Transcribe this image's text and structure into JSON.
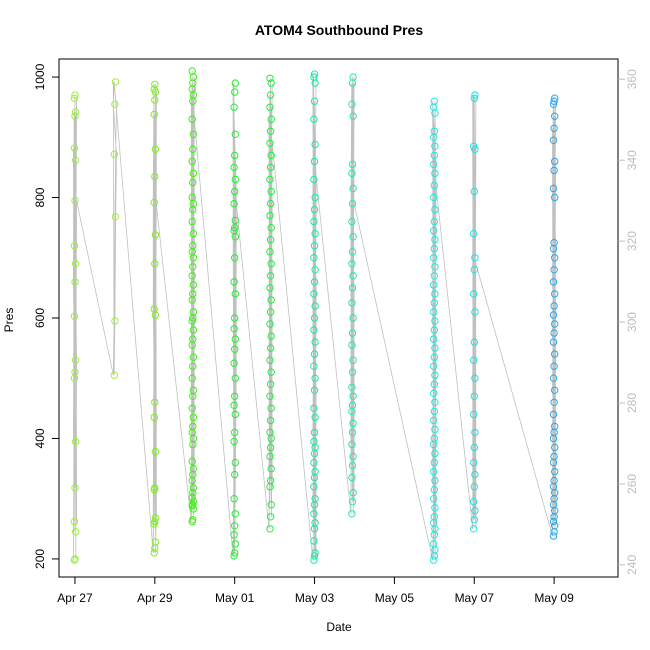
{
  "chart_data": {
    "type": "scatter",
    "title": "ATOM4 Southbound Pres",
    "xlabel": "Date",
    "ylabel": "Pres",
    "x_domain_days": [
      -0.4,
      13.6
    ],
    "x_ticks": [
      {
        "day": 0,
        "label": "Apr 27"
      },
      {
        "day": 2,
        "label": "Apr 29"
      },
      {
        "day": 4,
        "label": "May 01"
      },
      {
        "day": 6,
        "label": "May 03"
      },
      {
        "day": 8,
        "label": "May 05"
      },
      {
        "day": 10,
        "label": "May 07"
      },
      {
        "day": 12,
        "label": "May 09"
      }
    ],
    "ylim": [
      170,
      1030
    ],
    "y_ticks": [
      200,
      400,
      600,
      800,
      1000
    ],
    "y2lim": [
      237,
      365
    ],
    "y2_ticks": [
      240,
      260,
      280,
      300,
      320,
      340,
      360
    ],
    "grid": false,
    "casts": [
      {
        "day": 0.0,
        "color": "#9af13b",
        "values": [
          198,
          200,
          245,
          262,
          318,
          395,
          500,
          510,
          530,
          603,
          660,
          690,
          720,
          795,
          862,
          882,
          935,
          942,
          965,
          970
        ]
      },
      {
        "day": 1.0,
        "color": "#a2ef3c",
        "values": [
          505,
          595,
          768,
          872,
          955,
          992
        ]
      },
      {
        "day": 2.0,
        "color": "#80ef20",
        "values": [
          210,
          218,
          228,
          258,
          262,
          268,
          315,
          318,
          378,
          435,
          460,
          605,
          615,
          690,
          738,
          792,
          835,
          880,
          938,
          962,
          975,
          980,
          988
        ]
      },
      {
        "day": 2.95,
        "color": "#3ff014",
        "values": [
          262,
          265,
          283,
          288,
          290,
          295,
          302,
          310,
          318,
          330,
          340,
          350,
          362,
          390,
          400,
          410,
          420,
          435,
          450,
          470,
          480,
          500,
          520,
          535,
          555,
          565,
          580,
          595,
          600,
          610,
          630,
          640,
          655,
          670,
          685,
          700,
          710,
          720,
          740,
          760,
          780,
          790,
          800,
          825,
          840,
          860,
          880,
          905,
          930,
          960,
          970,
          980,
          990,
          1000,
          1010
        ]
      },
      {
        "day": 4.0,
        "color": "#22f030",
        "values": [
          205,
          210,
          225,
          240,
          255,
          275,
          300,
          340,
          360,
          395,
          410,
          440,
          455,
          470,
          500,
          525,
          548,
          565,
          582,
          600,
          640,
          660,
          700,
          735,
          745,
          750,
          762,
          790,
          810,
          830,
          850,
          870,
          905,
          950,
          975,
          990
        ]
      },
      {
        "day": 4.9,
        "color": "#20ee40",
        "values": [
          250,
          270,
          290,
          320,
          330,
          350,
          370,
          385,
          400,
          410,
          430,
          450,
          470,
          490,
          510,
          530,
          550,
          570,
          590,
          610,
          630,
          650,
          670,
          690,
          710,
          730,
          750,
          770,
          790,
          810,
          830,
          850,
          870,
          890,
          910,
          930,
          950,
          970,
          990,
          998
        ]
      },
      {
        "day": 6.0,
        "color": "#20e8a0",
        "values": [
          198,
          205,
          210,
          230,
          250,
          260,
          275,
          290,
          300,
          320,
          335,
          345,
          360,
          375,
          385,
          395,
          410,
          435,
          450,
          480,
          500,
          520,
          540,
          560,
          580,
          600,
          620,
          640,
          660,
          680,
          700,
          720,
          740,
          760,
          780,
          800,
          830,
          860,
          888,
          930,
          960,
          990,
          1000,
          1005
        ]
      },
      {
        "day": 6.95,
        "color": "#28e8b0",
        "values": [
          275,
          295,
          310,
          335,
          355,
          370,
          390,
          410,
          425,
          445,
          455,
          470,
          485,
          510,
          530,
          555,
          575,
          600,
          625,
          650,
          670,
          690,
          710,
          735,
          760,
          790,
          815,
          840,
          855,
          935,
          955,
          990,
          1000
        ]
      },
      {
        "day": 9.0,
        "color": "#20e8e0",
        "values": [
          198,
          205,
          215,
          225,
          240,
          250,
          260,
          270,
          285,
          300,
          315,
          330,
          345,
          360,
          375,
          390,
          400,
          415,
          430,
          445,
          460,
          475,
          490,
          505,
          520,
          535,
          550,
          565,
          580,
          595,
          610,
          625,
          640,
          655,
          670,
          685,
          700,
          715,
          730,
          745,
          760,
          780,
          800,
          820,
          840,
          855,
          870,
          885,
          900,
          910,
          940,
          950,
          960
        ]
      },
      {
        "day": 10.0,
        "color": "#20e0e8",
        "values": [
          250,
          265,
          280,
          295,
          320,
          340,
          360,
          385,
          410,
          440,
          470,
          500,
          530,
          560,
          610,
          640,
          680,
          700,
          740,
          810,
          880,
          885,
          965,
          970
        ]
      },
      {
        "day": 12.0,
        "color": "#2aa8e8",
        "values": [
          238,
          245,
          255,
          262,
          270,
          280,
          290,
          300,
          310,
          320,
          330,
          345,
          360,
          370,
          385,
          400,
          410,
          420,
          440,
          460,
          480,
          500,
          520,
          540,
          560,
          575,
          590,
          605,
          620,
          640,
          660,
          680,
          700,
          715,
          725,
          800,
          815,
          845,
          860,
          895,
          915,
          935,
          955,
          960,
          965
        ]
      }
    ]
  }
}
